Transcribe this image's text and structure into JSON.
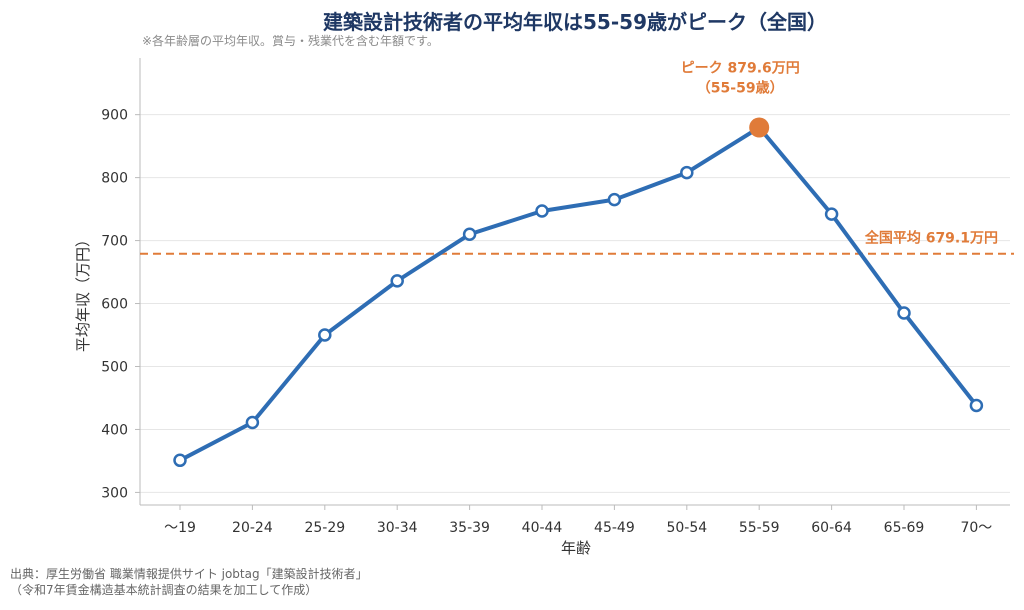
{
  "title": "建築設計技術者の平均年収は55-59歳がピーク（全国）",
  "subtitle": "※各年齢層の平均年収。賞与・残業代を含む年額です。",
  "source": {
    "line1": "出典：厚生労働省 職業情報提供サイト jobtag「建築設計技術者」",
    "line2": "（令和7年賃金構造基本統計調査の結果を加工して作成）"
  },
  "chart_data": {
    "type": "line",
    "categories": [
      "～19",
      "20-24",
      "25-29",
      "30-34",
      "35-39",
      "40-44",
      "45-49",
      "50-54",
      "55-59",
      "60-64",
      "65-69",
      "70～"
    ],
    "values": [
      351,
      411,
      550,
      636,
      710,
      747,
      765,
      808,
      879.6,
      742,
      585,
      438
    ],
    "xlabel": "年齢",
    "ylabel": "平均年収（万円）",
    "ylim": [
      280,
      990
    ],
    "yticks": [
      300,
      400,
      500,
      600,
      700,
      800,
      900
    ],
    "grid": true,
    "reference_line": {
      "value": 679.1,
      "label": "全国平均 679.1万円"
    },
    "peak": {
      "index": 8,
      "label_line1": "ピーク 879.6万円",
      "label_line2": "（55-59歳）"
    },
    "colors": {
      "line": "#2e6db4",
      "marker_fill": "#ffffff",
      "peak": "#e07b39",
      "reference": "#e07b39",
      "title": "#1f3864"
    }
  }
}
